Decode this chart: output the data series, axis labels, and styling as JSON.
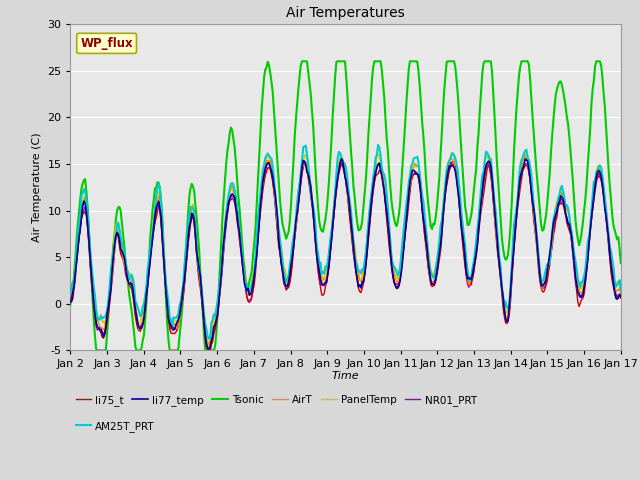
{
  "title": "Air Temperatures",
  "xlabel": "Time",
  "ylabel": "Air Temperature (C)",
  "ylim": [
    -5,
    30
  ],
  "bg_color": "#d8d8d8",
  "plot_bg_color": "#e8e8e8",
  "grid_color": "#ffffff",
  "annotation_text": "WP_flux",
  "annotation_color": "#8b0000",
  "annotation_bg": "#ffffcc",
  "annotation_edge": "#aaaa00",
  "xtick_labels": [
    "Jan 2",
    "Jan 3",
    "Jan 4",
    "Jan 5",
    "Jan 6",
    "Jan 7",
    "Jan 8",
    "Jan 9",
    "Jan 10",
    "Jan 11",
    "Jan 12",
    "Jan 13",
    "Jan 14",
    "Jan 15",
    "Jan 16",
    "Jan 17"
  ],
  "ytick_positions": [
    -5,
    0,
    5,
    10,
    15,
    20,
    25,
    30
  ],
  "series": [
    {
      "name": "li75_t",
      "color": "#cc0000",
      "lw": 1.0,
      "zorder": 4
    },
    {
      "name": "li77_temp",
      "color": "#000099",
      "lw": 1.2,
      "zorder": 5
    },
    {
      "name": "Tsonic",
      "color": "#00cc00",
      "lw": 1.5,
      "zorder": 3
    },
    {
      "name": "AirT",
      "color": "#ff8800",
      "lw": 1.0,
      "zorder": 4
    },
    {
      "name": "PanelTemp",
      "color": "#cccc00",
      "lw": 1.0,
      "zorder": 3
    },
    {
      "name": "NR01_PRT",
      "color": "#9900cc",
      "lw": 1.0,
      "zorder": 3
    },
    {
      "name": "AM25T_PRT",
      "color": "#00cccc",
      "lw": 1.5,
      "zorder": 4
    }
  ]
}
